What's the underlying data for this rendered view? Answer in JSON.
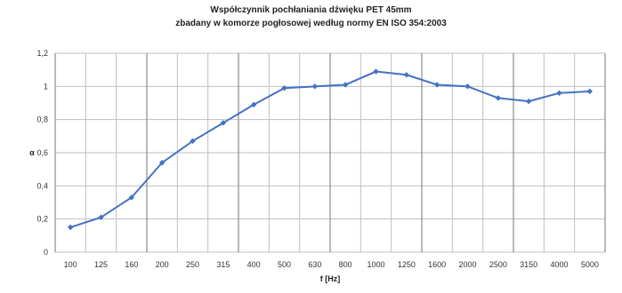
{
  "chart_data": {
    "type": "line",
    "title": "Współczynnik pochłaniania dźwięku PET 45mm",
    "subtitle": "zbadany w komorze pogłosowej według normy EN ISO 354:2003",
    "xlabel": "f [Hz]",
    "ylabel": "α",
    "categories": [
      "100",
      "125",
      "160",
      "200",
      "250",
      "315",
      "400",
      "500",
      "630",
      "800",
      "1000",
      "1250",
      "1600",
      "2000",
      "2500",
      "3150",
      "4000",
      "5000"
    ],
    "series": [
      {
        "values": [
          0.15,
          0.21,
          0.33,
          0.54,
          0.67,
          0.78,
          0.89,
          0.99,
          1.0,
          1.01,
          1.09,
          1.07,
          1.01,
          1.0,
          0.93,
          0.91,
          0.96,
          0.97
        ]
      }
    ],
    "ylim": [
      0,
      1.2
    ],
    "yticks": [
      "0",
      "0,2",
      "0,4",
      "0,6",
      "0,8",
      "1",
      "1,2"
    ],
    "grid": true,
    "legend": "none",
    "colors": {
      "line": "#4472c4",
      "grid": "#bfbfbf",
      "major_vgrid": "#8c8c8c"
    }
  }
}
